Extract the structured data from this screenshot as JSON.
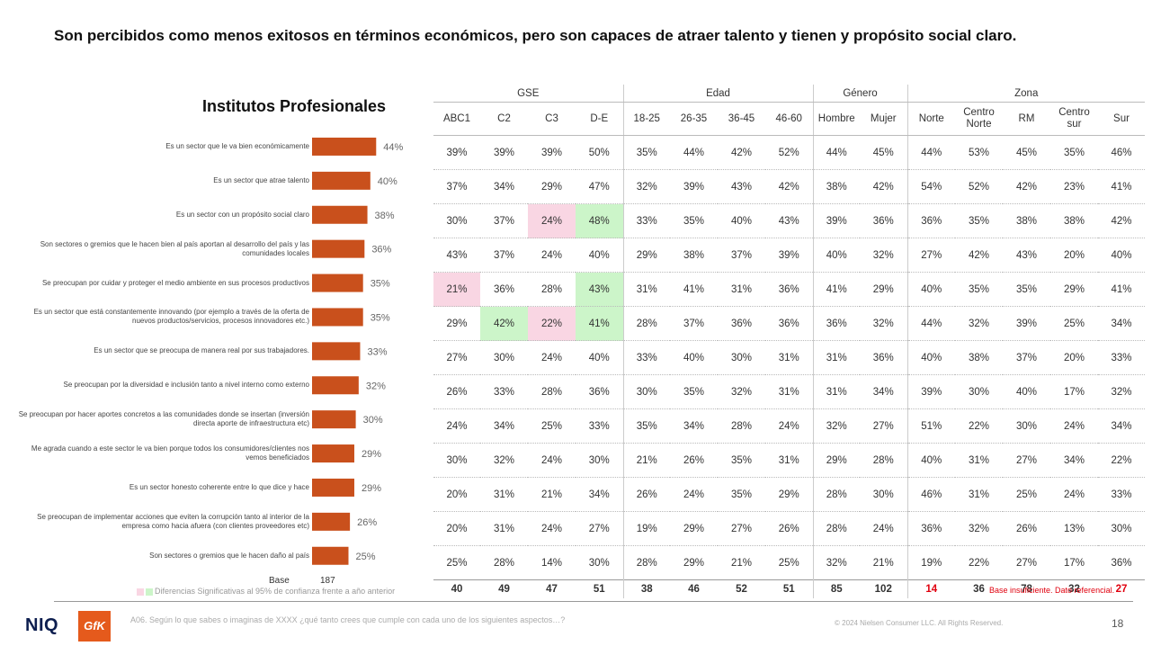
{
  "title": "Son percibidos como menos exitosos en términos económicos, pero son capaces de atraer talento y tienen y propósito social claro.",
  "chart_data": {
    "type": "bar",
    "title": "Institutos Profesionales",
    "orientation": "horizontal",
    "categories": [
      "Es un sector que le va bien económicamente",
      "Es un sector que atrae talento",
      "Es un sector con un propósito social claro",
      "Son sectores o gremios que le hacen bien al país aportan al desarrollo del país y las comunidades locales",
      "Se preocupan por cuidar y proteger el medio ambiente en sus procesos productivos",
      "Es un sector que está constantemente innovando (por ejemplo a través de la oferta de nuevos productos/servicios, procesos innovadores etc.)",
      "Es un sector que se preocupa de manera real por sus trabajadores.",
      "Se preocupan por la diversidad e inclusión tanto a nivel interno como externo",
      "Se preocupan por hacer aportes concretos a las comunidades donde se insertan (inversión directa aporte de infraestructura etc)",
      "Me agrada cuando a este sector le va bien porque todos los consumidores/clientes nos vemos beneficiados",
      "Es un sector honesto coherente entre lo que dice y hace",
      "Se preocupan de implementar acciones que eviten la corrupción tanto al interior de la empresa como hacia afuera (con clientes proveedores etc)",
      "Son sectores o gremios que le hacen daño al país"
    ],
    "values": [
      44,
      40,
      38,
      36,
      35,
      35,
      33,
      32,
      30,
      29,
      29,
      26,
      25
    ],
    "value_labels": [
      "44%",
      "40%",
      "38%",
      "36%",
      "35%",
      "35%",
      "33%",
      "32%",
      "30%",
      "29%",
      "29%",
      "26%",
      "25%"
    ],
    "bar_color": "#c9501c",
    "base_label": "Base",
    "base_value": "187",
    "table": {
      "groups": [
        {
          "label": "GSE",
          "span": 4
        },
        {
          "label": "Edad",
          "span": 4
        },
        {
          "label": "Género",
          "span": 2
        },
        {
          "label": "Zona",
          "span": 5
        }
      ],
      "columns": [
        "ABC1",
        "C2",
        "C3",
        "D-E",
        "18-25",
        "26-35",
        "36-45",
        "46-60",
        "Hombre",
        "Mujer",
        "Norte",
        "Centro Norte",
        "RM",
        "Centro sur",
        "Sur"
      ],
      "rows": [
        [
          "39%",
          "39%",
          "39%",
          "50%",
          "35%",
          "44%",
          "42%",
          "52%",
          "44%",
          "45%",
          "44%",
          "53%",
          "45%",
          "35%",
          "46%"
        ],
        [
          "37%",
          "34%",
          "29%",
          "47%",
          "32%",
          "39%",
          "43%",
          "42%",
          "38%",
          "42%",
          "54%",
          "52%",
          "42%",
          "23%",
          "41%"
        ],
        [
          "30%",
          "37%",
          "24%",
          "48%",
          "33%",
          "35%",
          "40%",
          "43%",
          "39%",
          "36%",
          "36%",
          "35%",
          "38%",
          "38%",
          "42%"
        ],
        [
          "43%",
          "37%",
          "24%",
          "40%",
          "29%",
          "38%",
          "37%",
          "39%",
          "40%",
          "32%",
          "27%",
          "42%",
          "43%",
          "20%",
          "40%"
        ],
        [
          "21%",
          "36%",
          "28%",
          "43%",
          "31%",
          "41%",
          "31%",
          "36%",
          "41%",
          "29%",
          "40%",
          "35%",
          "35%",
          "29%",
          "41%"
        ],
        [
          "29%",
          "42%",
          "22%",
          "41%",
          "28%",
          "37%",
          "36%",
          "36%",
          "36%",
          "32%",
          "44%",
          "32%",
          "39%",
          "25%",
          "34%"
        ],
        [
          "27%",
          "30%",
          "24%",
          "40%",
          "33%",
          "40%",
          "30%",
          "31%",
          "31%",
          "36%",
          "40%",
          "38%",
          "37%",
          "20%",
          "33%"
        ],
        [
          "26%",
          "33%",
          "28%",
          "36%",
          "30%",
          "35%",
          "32%",
          "31%",
          "31%",
          "34%",
          "39%",
          "30%",
          "40%",
          "17%",
          "32%"
        ],
        [
          "24%",
          "34%",
          "25%",
          "33%",
          "35%",
          "34%",
          "28%",
          "24%",
          "32%",
          "27%",
          "51%",
          "22%",
          "30%",
          "24%",
          "34%"
        ],
        [
          "30%",
          "32%",
          "24%",
          "30%",
          "21%",
          "26%",
          "35%",
          "31%",
          "29%",
          "28%",
          "40%",
          "31%",
          "27%",
          "34%",
          "22%"
        ],
        [
          "20%",
          "31%",
          "21%",
          "34%",
          "26%",
          "24%",
          "35%",
          "29%",
          "28%",
          "30%",
          "46%",
          "31%",
          "25%",
          "24%",
          "33%"
        ],
        [
          "20%",
          "31%",
          "24%",
          "27%",
          "19%",
          "29%",
          "27%",
          "26%",
          "28%",
          "24%",
          "36%",
          "32%",
          "26%",
          "13%",
          "30%"
        ],
        [
          "25%",
          "28%",
          "14%",
          "30%",
          "28%",
          "29%",
          "21%",
          "25%",
          "32%",
          "21%",
          "19%",
          "22%",
          "27%",
          "17%",
          "36%"
        ]
      ],
      "highlights": [
        {
          "row": 2,
          "col": 2,
          "kind": "neg"
        },
        {
          "row": 2,
          "col": 3,
          "kind": "pos"
        },
        {
          "row": 4,
          "col": 0,
          "kind": "neg"
        },
        {
          "row": 4,
          "col": 3,
          "kind": "pos"
        },
        {
          "row": 5,
          "col": 1,
          "kind": "pos"
        },
        {
          "row": 5,
          "col": 2,
          "kind": "neg"
        },
        {
          "row": 5,
          "col": 3,
          "kind": "pos"
        }
      ],
      "base": [
        "40",
        "49",
        "47",
        "51",
        "38",
        "46",
        "52",
        "51",
        "85",
        "102",
        "14",
        "36",
        "78",
        "32",
        "27"
      ],
      "base_insufficient_cols": [
        10,
        14
      ],
      "highlight_colors": {
        "pos": "#ccf5c9",
        "neg": "#f9d6e3",
        "insufficient": "#e0000e"
      }
    }
  },
  "legend_note": "Diferencias Significativas al 95% de confianza frente a año anterior",
  "insufficient_note": "Base insuficiente. Dato referencial.",
  "footnote": "A06. Según lo que sabes o imaginas de XXXX ¿qué tanto crees que cumple con cada uno de los siguientes aspectos…?",
  "copyright": "© 2024 Nielsen Consumer LLC. All Rights Reserved.",
  "page_number": "18",
  "logos": {
    "niq": "NIQ",
    "gfk": "GfK"
  }
}
